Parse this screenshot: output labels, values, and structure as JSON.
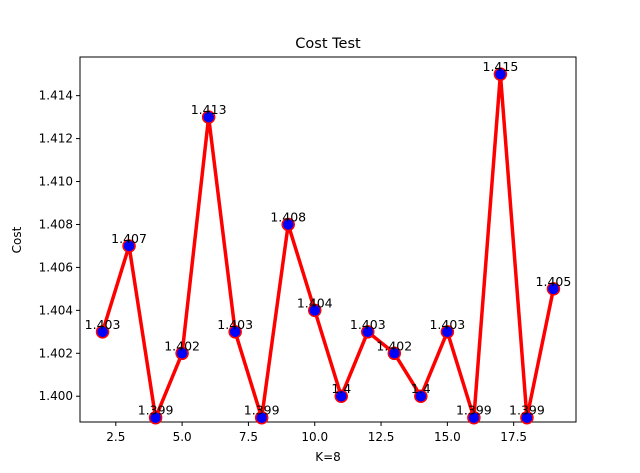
{
  "chart_data": {
    "type": "line",
    "title": "Cost Test",
    "xlabel": "K=8",
    "ylabel": "Cost",
    "x": [
      2,
      3,
      4,
      5,
      6,
      7,
      8,
      9,
      10,
      11,
      12,
      13,
      14,
      15,
      16,
      17,
      18,
      19
    ],
    "series": [
      {
        "values": [
          1.403,
          1.407,
          1.399,
          1.402,
          1.413,
          1.403,
          1.399,
          1.408,
          1.404,
          1.4,
          1.403,
          1.402,
          1.4,
          1.403,
          1.399,
          1.415,
          1.399,
          1.405
        ],
        "labels": [
          "1.403",
          "1.407",
          "1.399",
          "1.402",
          "1.413",
          "1.403",
          "1.399",
          "1.408",
          "1.404",
          "1.4",
          "1.403",
          "1.402",
          "1.4",
          "1.403",
          "1.399",
          "1.415",
          "1.399",
          "1.405"
        ],
        "line_color": "#ff0000",
        "marker_color": "#0000ff",
        "marker_edge_color": "#ff0000"
      }
    ],
    "xlim": [
      1.15,
      19.85
    ],
    "ylim": [
      1.3988,
      1.4158
    ],
    "xticks": [
      2.5,
      5.0,
      7.5,
      10.0,
      12.5,
      15.0,
      17.5
    ],
    "xtick_labels": [
      "2.5",
      "5.0",
      "7.5",
      "10.0",
      "12.5",
      "15.0",
      "17.5"
    ],
    "yticks": [
      1.4,
      1.402,
      1.404,
      1.406,
      1.408,
      1.41,
      1.412,
      1.414
    ],
    "ytick_labels": [
      "1.400",
      "1.402",
      "1.404",
      "1.406",
      "1.408",
      "1.410",
      "1.412",
      "1.414"
    ],
    "grid": false,
    "legend": false
  }
}
